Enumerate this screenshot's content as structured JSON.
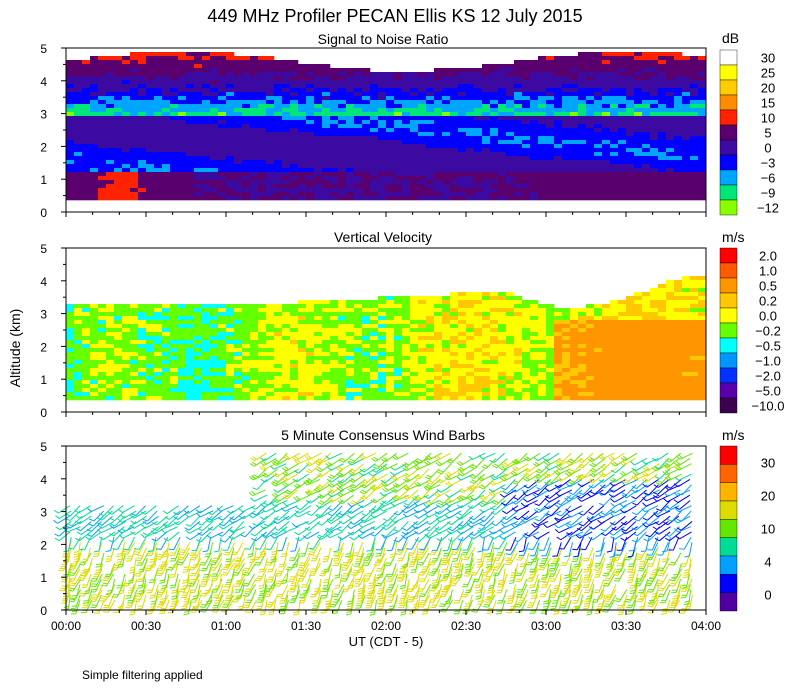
{
  "chart_data": {
    "type": "heatmap",
    "title": "449 MHz Profiler PECAN Ellis KS 12 July 2015",
    "ylabel": "Altitude (km)",
    "xlabel": "UT  (CDT - 5)",
    "x_ticks": [
      "00:00",
      "00:30",
      "01:00",
      "01:30",
      "02:00",
      "02:30",
      "03:00",
      "03:30",
      "04:00"
    ],
    "y_ticks": [
      "0",
      "1",
      "2",
      "3",
      "4",
      "5"
    ],
    "xlim": [
      "00:00",
      "04:00"
    ],
    "ylim": [
      0,
      5
    ],
    "footnote": "Simple filtering applied",
    "panels": [
      {
        "title": "Signal to Noise Ratio",
        "unit": "dB",
        "colorbar": {
          "labels": [
            "30",
            "25",
            "20",
            "15",
            "10",
            "5",
            "0",
            "−3",
            "−6",
            "−9",
            "−12"
          ],
          "colors": [
            "#ffffff",
            "#ffff00",
            "#ffcc00",
            "#ff8c00",
            "#ff2200",
            "#5a006e",
            "#3c0aa0",
            "#0000ff",
            "#00a5ff",
            "#00e678",
            "#88ff00"
          ]
        }
      },
      {
        "title": "Vertical Velocity",
        "unit": "m/s",
        "colorbar": {
          "labels": [
            "2.0",
            "1.0",
            "0.5",
            "0.2",
            "0.0",
            "−0.2",
            "−0.5",
            "−1.0",
            "−2.0",
            "−5.0",
            "−10.0"
          ],
          "colors": [
            "#ff0000",
            "#ff5a00",
            "#ff9600",
            "#ffc800",
            "#ffff00",
            "#64ff00",
            "#00ffff",
            "#0096ff",
            "#0032ff",
            "#5a00aa",
            "#3c0050"
          ]
        }
      },
      {
        "title": "5 Minute Consensus Wind Barbs",
        "unit": "m/s",
        "colorbar": {
          "labels": [
            "30",
            "20",
            "10",
            "4",
            "0"
          ],
          "colors": [
            "#ff0000",
            "#ff6400",
            "#ffb400",
            "#dcdc00",
            "#64e600",
            "#00dc96",
            "#00a0ff",
            "#0000ff",
            "#5000a0"
          ]
        }
      }
    ]
  }
}
